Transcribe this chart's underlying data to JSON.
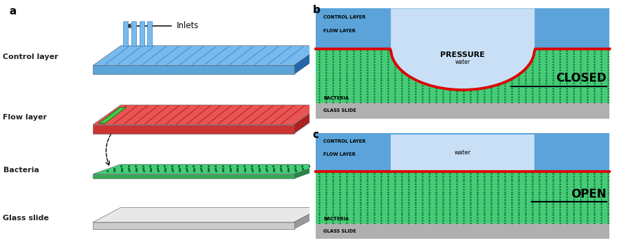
{
  "panel_a": {
    "label": "a",
    "inlets_label": "Inlets",
    "control_label": "Control layer",
    "flow_label": "Flow layer",
    "bacteria_label": "Bacteria",
    "glass_label": "Glass slide"
  },
  "panel_b": {
    "label": "b",
    "text_pressure": "PRESSURE",
    "text_water_sub": "water",
    "text_state": "CLOSED",
    "text_control": "CONTROL LAYER",
    "text_flow": "FLOW LAYER",
    "text_bacteria": "BACTERIA",
    "text_glass": "GLASS SLIDE"
  },
  "panel_c": {
    "label": "c",
    "text_water": "water",
    "text_state": "OPEN",
    "text_control": "CONTROL LAYER",
    "text_flow": "FLOW LAYER",
    "text_bacteria": "BACTERIA",
    "text_glass": "GLASS SLIDE"
  },
  "colors": {
    "control_blue": "#5ba3d9",
    "control_blue_light": "#77bbee",
    "control_blue_dark": "#2266aa",
    "flow_red": "#e85555",
    "flow_red_dark": "#aa2222",
    "bacteria_green": "#44cc77",
    "bacteria_green_dark": "#228844",
    "bacteria_dot": "#1a6633",
    "glass_light": "#e8e8e8",
    "glass_mid": "#cccccc",
    "glass_dark": "#999999",
    "glass_gray": "#b0b0b0",
    "water_light": "#c8dff5",
    "membrane_red": "#dd0000",
    "label_color": "#222222"
  }
}
